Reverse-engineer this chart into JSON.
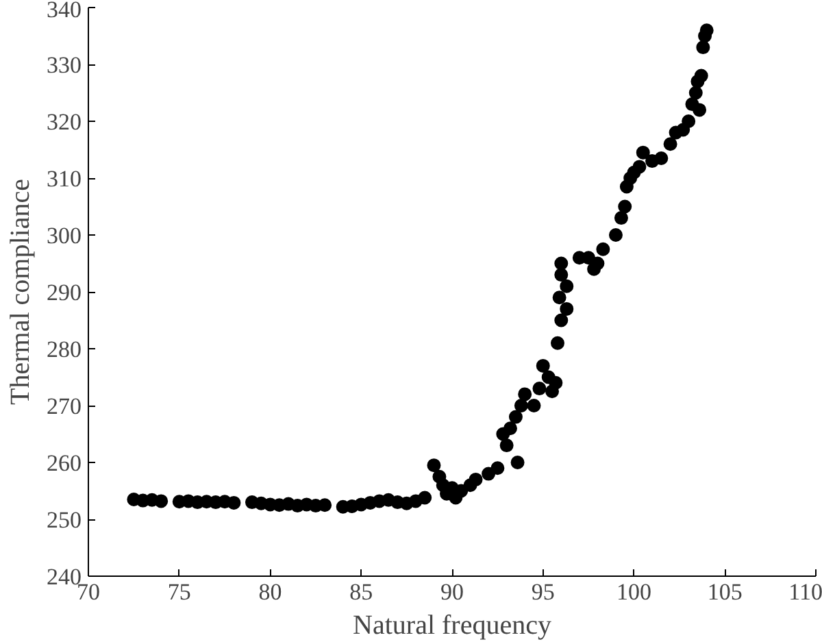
{
  "chart_data": {
    "type": "scatter",
    "xlabel": "Natural frequency",
    "ylabel": "Thermal compliance",
    "xlim": [
      70,
      110
    ],
    "xticks": [
      70,
      75,
      80,
      85,
      90,
      95,
      100,
      105,
      110
    ],
    "ylim": [
      240,
      340
    ],
    "yticks": [
      240,
      250,
      260,
      270,
      280,
      290,
      300,
      310,
      320,
      330,
      340
    ],
    "grid": false,
    "marker": "circle",
    "series": [
      {
        "color": "#000000",
        "x": [
          72.5,
          73,
          73.5,
          74,
          75,
          75.5,
          76,
          76.5,
          77,
          77.5,
          78,
          79,
          79.5,
          80,
          80.5,
          81,
          81.5,
          82,
          82.5,
          83,
          84,
          84.5,
          85,
          85.5,
          86,
          86.5,
          87,
          87.5,
          88,
          88.5,
          89,
          89.3,
          89.5,
          89.7,
          90,
          90.2,
          90.5,
          91,
          91.3,
          92,
          92.5,
          92.8,
          93,
          93.2,
          93.5,
          93.8,
          93.6,
          94,
          94.5,
          94.8,
          95,
          95.3,
          95.5,
          95.7,
          95.8,
          96,
          95.9,
          96,
          96,
          96.3,
          96.3,
          97,
          97.5,
          98,
          98.3,
          97.8,
          99,
          99.3,
          99.5,
          99.6,
          99.8,
          100,
          100.3,
          100.5,
          101,
          101.5,
          102,
          102.3,
          102.7,
          103,
          103.2,
          103.4,
          103.5,
          103.6,
          103.7,
          103.8,
          103.9,
          104
        ],
        "values": [
          253.5,
          253.3,
          253.4,
          253.2,
          253.1,
          253.2,
          253.0,
          253.1,
          253.0,
          253.1,
          252.9,
          253.0,
          252.8,
          252.6,
          252.5,
          252.7,
          252.4,
          252.6,
          252.4,
          252.5,
          252.2,
          252.3,
          252.6,
          252.9,
          253.2,
          253.4,
          253.0,
          252.8,
          253.2,
          253.8,
          259.5,
          257.5,
          256,
          254.5,
          255.5,
          253.8,
          255,
          256,
          257,
          258,
          259,
          265,
          263,
          266,
          268,
          270,
          260,
          272,
          270,
          273,
          277,
          275,
          272.5,
          274,
          281,
          285,
          289,
          293,
          295,
          291,
          287,
          296,
          296,
          295,
          297.5,
          294,
          300,
          303,
          305,
          308.5,
          310,
          311,
          312,
          314.5,
          313,
          313.5,
          316,
          318,
          318.5,
          320,
          323,
          325,
          327,
          322,
          328,
          333,
          335,
          336
        ]
      }
    ]
  }
}
